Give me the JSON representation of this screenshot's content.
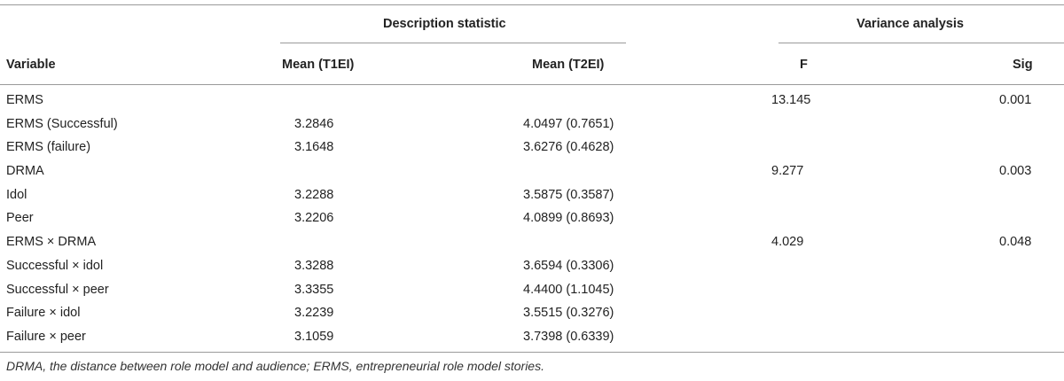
{
  "header": {
    "group_description": "Description statistic",
    "group_variance": "Variance analysis",
    "col_variable": "Variable",
    "col_mean_t1": "Mean (T1EI)",
    "col_mean_t2": "Mean (T2EI)",
    "col_f": "F",
    "col_sig": "Sig"
  },
  "rows": [
    {
      "variable": "ERMS",
      "mean_t1": "",
      "mean_t2": "",
      "f": "13.145",
      "sig": "0.001"
    },
    {
      "variable": "ERMS (Successful)",
      "mean_t1": "3.2846",
      "mean_t2": "4.0497 (0.7651)",
      "f": "",
      "sig": ""
    },
    {
      "variable": "ERMS (failure)",
      "mean_t1": "3.1648",
      "mean_t2": "3.6276 (0.4628)",
      "f": "",
      "sig": ""
    },
    {
      "variable": "DRMA",
      "mean_t1": "",
      "mean_t2": "",
      "f": "9.277",
      "sig": "0.003"
    },
    {
      "variable": "Idol",
      "mean_t1": "3.2288",
      "mean_t2": "3.5875 (0.3587)",
      "f": "",
      "sig": ""
    },
    {
      "variable": "Peer",
      "mean_t1": "3.2206",
      "mean_t2": "4.0899 (0.8693)",
      "f": "",
      "sig": ""
    },
    {
      "variable": "ERMS × DRMA",
      "mean_t1": "",
      "mean_t2": "",
      "f": "4.029",
      "sig": "0.048"
    },
    {
      "variable": "Successful × idol",
      "mean_t1": "3.3288",
      "mean_t2": "3.6594 (0.3306)",
      "f": "",
      "sig": ""
    },
    {
      "variable": "Successful × peer",
      "mean_t1": "3.3355",
      "mean_t2": "4.4400 (1.1045)",
      "f": "",
      "sig": ""
    },
    {
      "variable": "Failure × idol",
      "mean_t1": "3.2239",
      "mean_t2": "3.5515 (0.3276)",
      "f": "",
      "sig": ""
    },
    {
      "variable": "Failure × peer",
      "mean_t1": "3.1059",
      "mean_t2": "3.7398 (0.6339)",
      "f": "",
      "sig": ""
    }
  ],
  "footnote": "DRMA, the distance between role model and audience; ERMS, entrepreneurial role model stories."
}
